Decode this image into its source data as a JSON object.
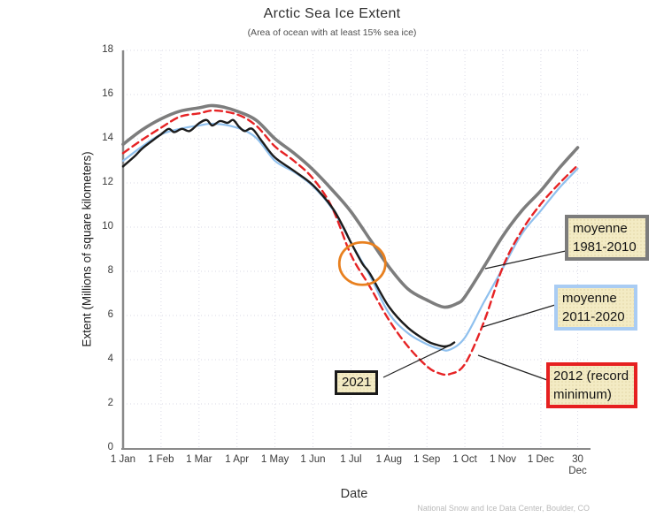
{
  "chart_data": {
    "type": "line",
    "title": "Arctic Sea Ice Extent",
    "subtitle": "(Area of ocean with at least 15% sea ice)",
    "xlabel": "Date",
    "ylabel": "Extent (Millions of square kilometers)",
    "attribution": "National Snow and Ice Data Center, Boulder, CO",
    "x_unit": "months since 1 Jan (0 = 1 Jan, 11.97 = 30 Dec)",
    "ylim": [
      0,
      18
    ],
    "grid": true,
    "yticks": [
      18,
      16,
      14,
      12,
      10,
      8,
      6,
      4,
      2,
      0
    ],
    "xticks": [
      {
        "t": 0,
        "label": "1 Jan"
      },
      {
        "t": 1,
        "label": "1 Feb"
      },
      {
        "t": 2,
        "label": "1 Mar"
      },
      {
        "t": 3,
        "label": "1 Apr"
      },
      {
        "t": 4,
        "label": "1 May"
      },
      {
        "t": 5,
        "label": "1 Jun"
      },
      {
        "t": 6,
        "label": "1 Jul"
      },
      {
        "t": 7,
        "label": "1 Aug"
      },
      {
        "t": 8,
        "label": "1 Sep"
      },
      {
        "t": 9,
        "label": "1 Oct"
      },
      {
        "t": 10,
        "label": "1 Nov"
      },
      {
        "t": 11,
        "label": "1 Dec"
      },
      {
        "t": 11.97,
        "label": "30 Dec",
        "wrap": true
      }
    ],
    "series": [
      {
        "name": "moyenne 1981-2010",
        "color": "#7d7d7d",
        "style": "solid",
        "width": 3.6,
        "points": [
          [
            0,
            13.75
          ],
          [
            0.5,
            14.4
          ],
          [
            1,
            14.9
          ],
          [
            1.5,
            15.25
          ],
          [
            2,
            15.4
          ],
          [
            2.3,
            15.5
          ],
          [
            2.6,
            15.45
          ],
          [
            3,
            15.25
          ],
          [
            3.5,
            14.85
          ],
          [
            4,
            14.0
          ],
          [
            4.5,
            13.35
          ],
          [
            5,
            12.6
          ],
          [
            5.5,
            11.7
          ],
          [
            6,
            10.7
          ],
          [
            6.5,
            9.45
          ],
          [
            7,
            8.2
          ],
          [
            7.5,
            7.2
          ],
          [
            8,
            6.7
          ],
          [
            8.45,
            6.38
          ],
          [
            8.8,
            6.55
          ],
          [
            9,
            6.85
          ],
          [
            9.5,
            8.2
          ],
          [
            10,
            9.6
          ],
          [
            10.5,
            10.75
          ],
          [
            11,
            11.65
          ],
          [
            11.5,
            12.7
          ],
          [
            11.97,
            13.6
          ]
        ]
      },
      {
        "name": "moyenne 2011-2020",
        "color": "#8fc0ee",
        "style": "solid",
        "width": 2.2,
        "points": [
          [
            0,
            13.0
          ],
          [
            0.5,
            13.65
          ],
          [
            1,
            14.2
          ],
          [
            1.5,
            14.45
          ],
          [
            2,
            14.6
          ],
          [
            2.4,
            14.68
          ],
          [
            3,
            14.5
          ],
          [
            3.5,
            14.05
          ],
          [
            4,
            13.0
          ],
          [
            4.5,
            12.5
          ],
          [
            5,
            11.85
          ],
          [
            5.5,
            10.85
          ],
          [
            6,
            9.3
          ],
          [
            6.5,
            7.8
          ],
          [
            7,
            6.1
          ],
          [
            7.5,
            5.2
          ],
          [
            8,
            4.7
          ],
          [
            8.35,
            4.48
          ],
          [
            8.6,
            4.45
          ],
          [
            9,
            5.0
          ],
          [
            9.5,
            6.6
          ],
          [
            10,
            8.15
          ],
          [
            10.5,
            9.7
          ],
          [
            11,
            10.75
          ],
          [
            11.5,
            11.8
          ],
          [
            11.97,
            12.65
          ]
        ]
      },
      {
        "name": "2012 (record minimum)",
        "color": "#e62325",
        "style": "dashed",
        "width": 2.4,
        "points": [
          [
            0,
            13.35
          ],
          [
            0.5,
            13.95
          ],
          [
            1,
            14.5
          ],
          [
            1.5,
            15.0
          ],
          [
            2,
            15.15
          ],
          [
            2.4,
            15.28
          ],
          [
            3,
            15.1
          ],
          [
            3.5,
            14.6
          ],
          [
            4,
            13.65
          ],
          [
            4.5,
            13.0
          ],
          [
            5,
            12.2
          ],
          [
            5.5,
            10.9
          ],
          [
            6,
            8.75
          ],
          [
            6.5,
            7.3
          ],
          [
            7,
            5.8
          ],
          [
            7.5,
            4.6
          ],
          [
            8,
            3.7
          ],
          [
            8.3,
            3.4
          ],
          [
            8.6,
            3.35
          ],
          [
            9,
            3.8
          ],
          [
            9.5,
            5.7
          ],
          [
            10,
            8.2
          ],
          [
            10.5,
            9.85
          ],
          [
            11,
            11.05
          ],
          [
            11.5,
            12.0
          ],
          [
            11.97,
            12.8
          ]
        ]
      },
      {
        "name": "2021",
        "color": "#1c1c1c",
        "style": "solid",
        "width": 2.4,
        "points": [
          [
            0,
            12.75
          ],
          [
            0.3,
            13.2
          ],
          [
            0.5,
            13.55
          ],
          [
            0.8,
            13.95
          ],
          [
            1,
            14.2
          ],
          [
            1.2,
            14.45
          ],
          [
            1.35,
            14.3
          ],
          [
            1.55,
            14.45
          ],
          [
            1.75,
            14.35
          ],
          [
            2,
            14.7
          ],
          [
            2.2,
            14.85
          ],
          [
            2.35,
            14.6
          ],
          [
            2.55,
            14.8
          ],
          [
            2.75,
            14.72
          ],
          [
            2.9,
            14.85
          ],
          [
            3.05,
            14.55
          ],
          [
            3.2,
            14.35
          ],
          [
            3.4,
            14.45
          ],
          [
            3.65,
            13.9
          ],
          [
            4,
            13.15
          ],
          [
            4.5,
            12.55
          ],
          [
            5,
            11.9
          ],
          [
            5.5,
            10.9
          ],
          [
            5.8,
            10.0
          ],
          [
            6,
            9.3
          ],
          [
            6.3,
            8.35
          ],
          [
            6.5,
            7.9
          ],
          [
            7,
            6.4
          ],
          [
            7.5,
            5.45
          ],
          [
            8,
            4.85
          ],
          [
            8.25,
            4.68
          ],
          [
            8.45,
            4.6
          ],
          [
            8.6,
            4.65
          ],
          [
            8.72,
            4.78
          ]
        ]
      }
    ],
    "annotation_circle": {
      "t": 6.3,
      "value": 8.35,
      "color": "#e8801f"
    },
    "callout_labels": [
      {
        "id": "avg-1981-2010",
        "text": "moyenne 1981-2010",
        "border_color": "#7c7c7c"
      },
      {
        "id": "avg-2011-2020",
        "text": "moyenne 2011-2020",
        "border_color": "#a9ccf3"
      },
      {
        "id": "record-2012",
        "text": "2012 (record minimum)",
        "border_color": "#e62020"
      },
      {
        "id": "year-2021",
        "text": "2021",
        "border_color": "#1a1a1a"
      }
    ],
    "colors": {
      "gridline": "#dadae6",
      "axis": "#8a8a8a",
      "tick_text": "#3a3a3a"
    }
  }
}
